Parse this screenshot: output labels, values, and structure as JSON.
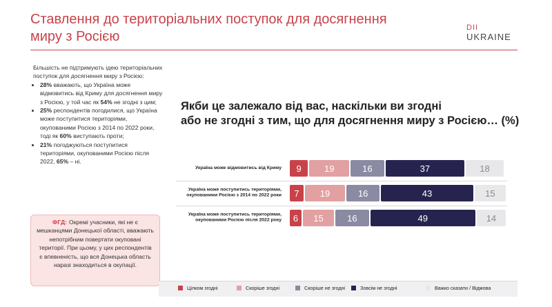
{
  "header": {
    "title": "Ставлення до територіальних поступок для досягнення миру з Росією",
    "logo_top": "DII",
    "logo_bottom": "UKRAINE"
  },
  "left_panel": {
    "intro": "Більшість не підтримують ідею територіальних поступок для досягнення миру з Росією:",
    "bullets": [
      [
        {
          "text": "28%",
          "bold": true
        },
        {
          "text": " вважають, що Україна може відмовитись від Криму для досягнення миру з Росією, у той час як ",
          "bold": false
        },
        {
          "text": "54%",
          "bold": true
        },
        {
          "text": " не згодні з цим;",
          "bold": false
        }
      ],
      [
        {
          "text": "25%",
          "bold": true
        },
        {
          "text": " респондентів погодилися, що Україна може поступитися територіями, окупованими Росією з 2014 по 2022 роки, тоді як ",
          "bold": false
        },
        {
          "text": "60%",
          "bold": true
        },
        {
          "text": " виступають проти;",
          "bold": false
        }
      ],
      [
        {
          "text": "21%",
          "bold": true
        },
        {
          "text": " погоджуються поступитися територіями, окупованими Росією після 2022, ",
          "bold": false
        },
        {
          "text": "65%",
          "bold": true
        },
        {
          "text": " – ні.",
          "bold": false
        }
      ]
    ],
    "note_label": "ФГД:",
    "note_text": "Окремі учасники, які не є мешканцями Донецької області, вважають непотрібним повертати окуповані території. При цьому, у цих респондентів є впевненість, що вся Донецька область наразі знаходиться в окупації."
  },
  "chart_data": {
    "type": "bar",
    "orientation": "horizontal",
    "stacked": true,
    "title": "Якби це залежало від вас, наскільки ви згодні\nабо не згодні з тим, що для досягнення миру з Росією… (%)",
    "categories": [
      "Україна може відмовитись від Криму",
      "Україна може поступитись територіями,\nокупованими Росією з 2014 по 2022 роки",
      "Україна може поступитись територіями,\nокупованими Росією після 2022 року"
    ],
    "series": [
      {
        "name": "Цілком згодні",
        "color": "#c9424a",
        "label_color": "#ffffff",
        "values": [
          9,
          7,
          6
        ]
      },
      {
        "name": "Скоріше згодні",
        "color": "#e2a0a2",
        "label_color": "#ffffff",
        "values": [
          19,
          19,
          15
        ]
      },
      {
        "name": "Скоріше не згодні",
        "color": "#8b8aa3",
        "label_color": "#ffffff",
        "values": [
          16,
          16,
          16
        ]
      },
      {
        "name": "Зовсім не згодні",
        "color": "#26244f",
        "label_color": "#ffffff",
        "values": [
          37,
          43,
          49
        ]
      },
      {
        "name": "Важко сказати / Відмова",
        "color": "#e8e8ea",
        "label_color": "#8a8a8a",
        "values": [
          18,
          15,
          14
        ]
      }
    ]
  }
}
